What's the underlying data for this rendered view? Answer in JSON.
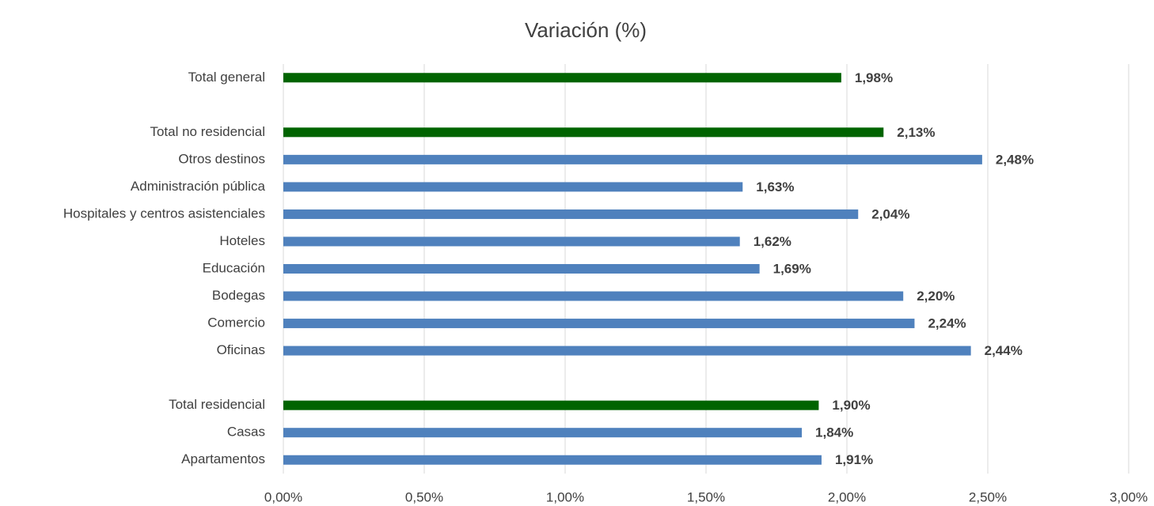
{
  "chart_data": {
    "type": "bar",
    "orientation": "horizontal",
    "title": "Variación (%)",
    "categories": [
      "Total general",
      null,
      "Total no residencial",
      "Otros destinos",
      "Administración pública",
      "Hospitales y centros asistenciales",
      "Hoteles",
      "Educación",
      "Bodegas",
      "Comercio",
      "Oficinas",
      null,
      "Total residencial",
      "Casas",
      "Apartamentos"
    ],
    "values": [
      1.98,
      null,
      2.13,
      2.48,
      1.63,
      2.04,
      1.62,
      1.69,
      2.2,
      2.24,
      2.44,
      null,
      1.9,
      1.84,
      1.91
    ],
    "value_labels": [
      "1,98%",
      null,
      "2,13%",
      "2,48%",
      "1,63%",
      "2,04%",
      "1,62%",
      "1,69%",
      "2,20%",
      "2,24%",
      "2,44%",
      null,
      "1,90%",
      "1,84%",
      "1,91%"
    ],
    "colors": [
      "#006400",
      null,
      "#006400",
      "#4f81bd",
      "#4f81bd",
      "#4f81bd",
      "#4f81bd",
      "#4f81bd",
      "#4f81bd",
      "#4f81bd",
      "#4f81bd",
      null,
      "#006400",
      "#4f81bd",
      "#4f81bd"
    ],
    "xlim": [
      0,
      3
    ],
    "xticks": [
      {
        "value": 0,
        "label": "0,00%"
      },
      {
        "value": 0.5,
        "label": "0,50%"
      },
      {
        "value": 1,
        "label": "1,00%"
      },
      {
        "value": 1.5,
        "label": "1,50%"
      },
      {
        "value": 2,
        "label": "2,00%"
      },
      {
        "value": 2.5,
        "label": "2,50%"
      },
      {
        "value": 3,
        "label": "3,00%"
      }
    ],
    "grid": true
  }
}
